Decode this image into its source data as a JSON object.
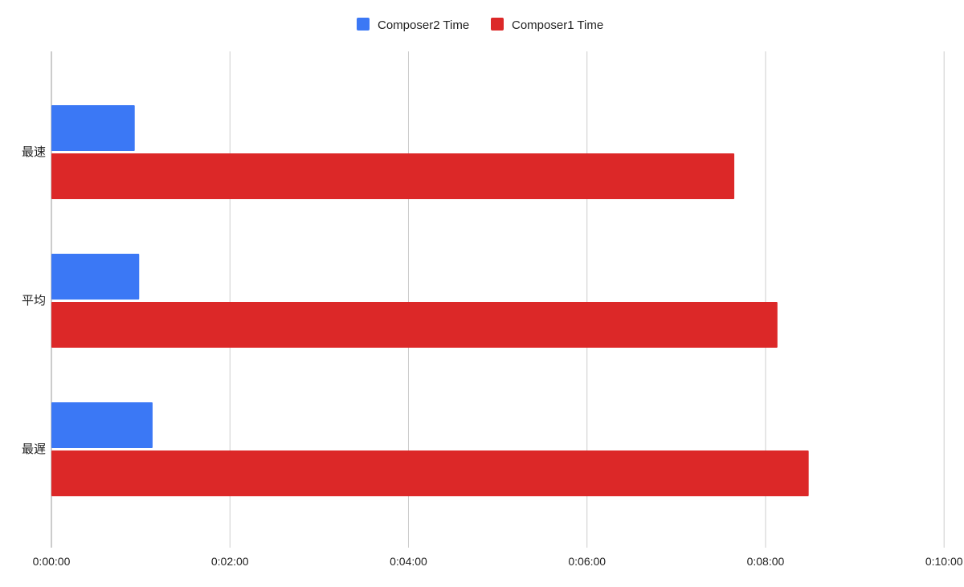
{
  "chart_data": {
    "type": "bar",
    "orientation": "horizontal",
    "categories": [
      "最速",
      "平均",
      "最遅"
    ],
    "series": [
      {
        "name": "Composer2 Time",
        "color": "#3b78f5",
        "values_seconds": [
          56,
          59,
          68
        ]
      },
      {
        "name": "Composer1 Time",
        "color": "#dc2828",
        "values_seconds": [
          459,
          488,
          509
        ]
      }
    ],
    "x_ticks": [
      "0:00:00",
      "0:02:00",
      "0:04:00",
      "0:06:00",
      "0:08:00",
      "0:10:00"
    ],
    "xlim_seconds": [
      0,
      600
    ],
    "grid": true,
    "legend_position": "top"
  }
}
